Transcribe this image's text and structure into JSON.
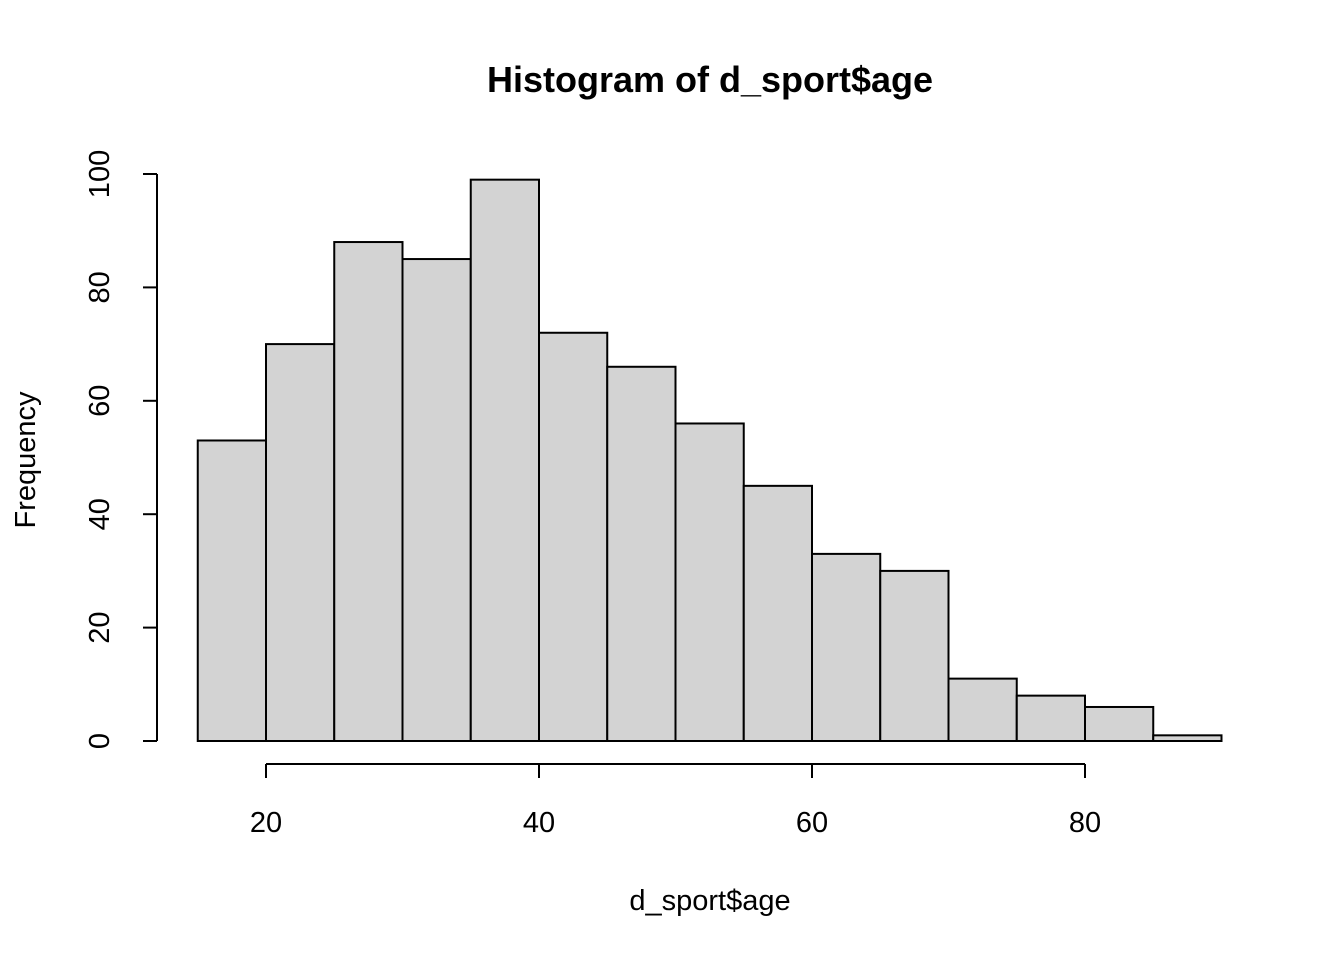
{
  "chart_data": {
    "type": "histogram",
    "title": "Histogram of d_sport$age",
    "xlabel": "d_sport$age",
    "ylabel": "Frequency",
    "bins": [
      {
        "start": 15,
        "end": 20,
        "count": 53
      },
      {
        "start": 20,
        "end": 25,
        "count": 70
      },
      {
        "start": 25,
        "end": 30,
        "count": 88
      },
      {
        "start": 30,
        "end": 35,
        "count": 85
      },
      {
        "start": 35,
        "end": 40,
        "count": 99
      },
      {
        "start": 40,
        "end": 45,
        "count": 72
      },
      {
        "start": 45,
        "end": 50,
        "count": 66
      },
      {
        "start": 50,
        "end": 55,
        "count": 56
      },
      {
        "start": 55,
        "end": 60,
        "count": 45
      },
      {
        "start": 60,
        "end": 65,
        "count": 33
      },
      {
        "start": 65,
        "end": 70,
        "count": 30
      },
      {
        "start": 70,
        "end": 75,
        "count": 11
      },
      {
        "start": 75,
        "end": 80,
        "count": 8
      },
      {
        "start": 80,
        "end": 85,
        "count": 6
      },
      {
        "start": 85,
        "end": 90,
        "count": 1
      }
    ],
    "x_ticks": [
      20,
      40,
      60,
      80
    ],
    "y_ticks": [
      0,
      20,
      40,
      60,
      80,
      100
    ],
    "x_tick_labels": [
      "20",
      "40",
      "60",
      "80"
    ],
    "y_tick_labels": [
      "0",
      "20",
      "40",
      "60",
      "80",
      "100"
    ],
    "xlim": [
      12,
      90
    ],
    "ylim": [
      0,
      100
    ],
    "grid": false,
    "legend": "none",
    "colors": {
      "bar_fill": "#d3d3d3",
      "bar_stroke": "#000000",
      "axis": "#000000",
      "background": "#ffffff"
    }
  }
}
